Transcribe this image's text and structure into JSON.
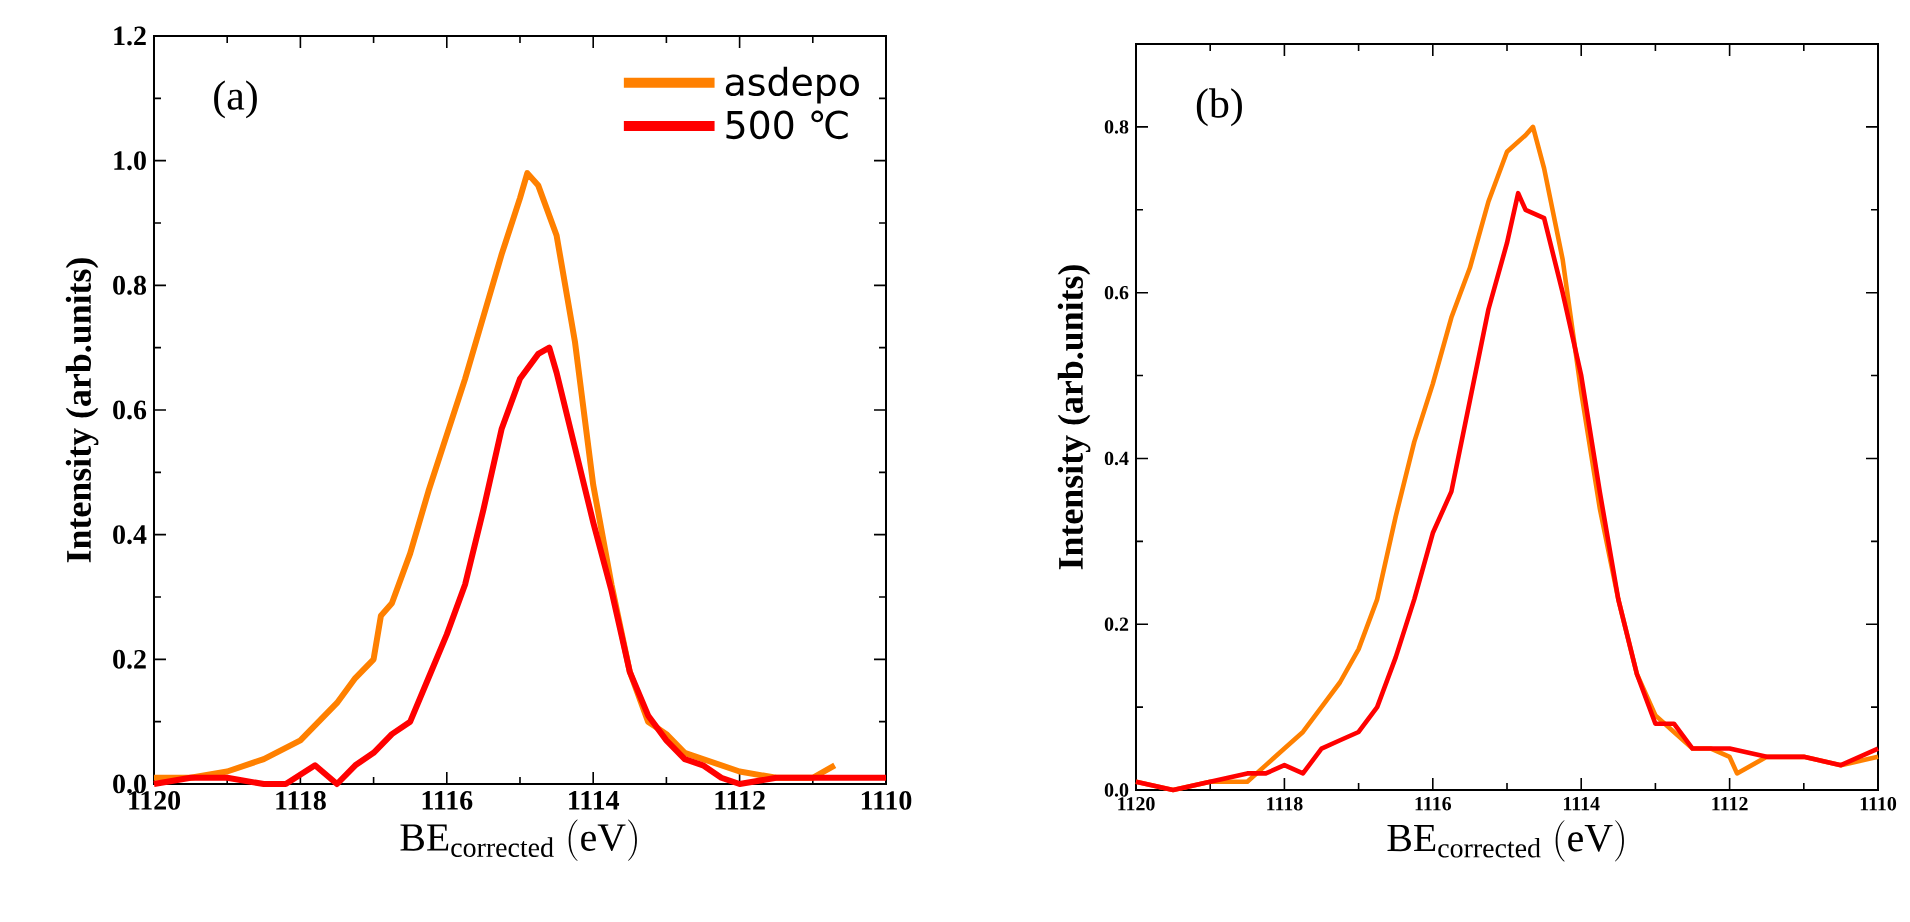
{
  "chart_data": [
    {
      "type": "line",
      "xlabel": "\\mathrm{BE}_{\\mathrm{corrected}}\\ \\mathrm{(eV)}",
      "ylabel": "Intensity (arb.units)",
      "annotations": [
        "(a)"
      ],
      "legend": "top right",
      "tick_labels": true,
      "xlim": [
        1120,
        1110
      ],
      "xticks": [
        1120,
        {
          "value": 1119,
          "label": null
        },
        1118,
        {
          "value": 1117,
          "label": null
        },
        1116,
        {
          "value": 1115,
          "label": null
        },
        1114,
        {
          "value": 1113,
          "label": null
        },
        1112,
        {
          "value": 1111,
          "label": null
        },
        1110
      ],
      "ylim": [
        0,
        1.2
      ],
      "yticks": [
        {
          "value": 0,
          "label": "0.0"
        },
        {
          "value": 0.1,
          "label": null
        },
        0.2,
        {
          "value": 0.3,
          "label": null
        },
        0.4,
        {
          "value": 0.5,
          "label": null
        },
        0.6,
        {
          "value": 0.7,
          "label": null
        },
        0.8,
        {
          "value": 0.9,
          "label": null
        },
        {
          "value": 1,
          "label": "1.0"
        },
        {
          "value": 1.1,
          "label": null
        },
        1.2
      ],
      "series": [
        {
          "name": "asdepo",
          "color": "#ff8000",
          "x": [
            1120,
            1119.5,
            1119,
            1118.5,
            1118,
            1117.75,
            1117.5,
            1117.25,
            1117,
            1116.9,
            1116.75,
            1116.5,
            1116.25,
            1116,
            1115.75,
            1115.5,
            1115.25,
            1115,
            1114.9,
            1114.75,
            1114.5,
            1114.25,
            1114,
            1113.75,
            1113.5,
            1113.25,
            1113,
            1112.75,
            1112.5,
            1112,
            1111.5,
            1111,
            1110.7
          ],
          "values": [
            0.01,
            0.01,
            0.02,
            0.04,
            0.07,
            0.1,
            0.13,
            0.17,
            0.2,
            0.27,
            0.29,
            0.37,
            0.47,
            0.56,
            0.65,
            0.75,
            0.85,
            0.94,
            0.98,
            0.96,
            0.88,
            0.71,
            0.48,
            0.32,
            0.18,
            0.1,
            0.08,
            0.05,
            0.04,
            0.02,
            0.01,
            0.01,
            0.03
          ]
        },
        {
          "name": "500 ℃",
          "color": "#ff0000",
          "x": [
            1120,
            1119.5,
            1119,
            1118.5,
            1118.2,
            1117.8,
            1117.5,
            1117.25,
            1117,
            1116.75,
            1116.5,
            1116.25,
            1116,
            1115.75,
            1115.5,
            1115.25,
            1115,
            1114.75,
            1114.6,
            1114.5,
            1114.25,
            1114,
            1113.75,
            1113.5,
            1113.25,
            1113,
            1112.75,
            1112.5,
            1112.25,
            1112,
            1111.5,
            1111,
            1110.5,
            1110
          ],
          "values": [
            0,
            0.01,
            0.01,
            0,
            0,
            0.03,
            0,
            0.03,
            0.05,
            0.08,
            0.1,
            0.17,
            0.24,
            0.32,
            0.44,
            0.57,
            0.65,
            0.69,
            0.7,
            0.66,
            0.54,
            0.42,
            0.31,
            0.18,
            0.11,
            0.07,
            0.04,
            0.03,
            0.01,
            0,
            0.01,
            0.01,
            0.01,
            0.01
          ]
        }
      ]
    },
    {
      "type": "line",
      "xlabel": "\\mathrm{BE}_{\\mathrm{corrected}}\\ \\mathrm{(eV)}",
      "ylabel": "Intensity (arb.units)",
      "annotations": [
        "(b)"
      ],
      "legend": false,
      "xlim": [
        1120,
        1110
      ],
      "xticks": [
        1120,
        {
          "value": 1119,
          "label": null
        },
        1118,
        {
          "value": 1117,
          "label": null
        },
        1116,
        {
          "value": 1115,
          "label": null
        },
        1114,
        {
          "value": 1113,
          "label": null
        },
        1112,
        {
          "value": 1111,
          "label": null
        },
        1110
      ],
      "ylim": [
        0,
        0.9
      ],
      "yticks": [
        {
          "value": 0,
          "label": "0.0"
        },
        {
          "value": 0.1,
          "label": null
        },
        0.2,
        {
          "value": 0.3,
          "label": null
        },
        0.4,
        {
          "value": 0.5,
          "label": null
        },
        0.6,
        {
          "value": 0.7,
          "label": null
        },
        0.8
      ],
      "series": [
        {
          "color": "#ff8000",
          "x": [
            1120,
            1119.5,
            1119,
            1118.5,
            1118.25,
            1118,
            1117.75,
            1117.5,
            1117.25,
            1117,
            1116.75,
            1116.5,
            1116.25,
            1116,
            1115.75,
            1115.5,
            1115.25,
            1115,
            1114.75,
            1114.65,
            1114.5,
            1114.25,
            1114,
            1113.75,
            1113.5,
            1113.25,
            1113,
            1112.75,
            1112.5,
            1112.25,
            1112,
            1111.9,
            1111.5,
            1111,
            1110.5,
            1110
          ],
          "values": [
            0.01,
            0,
            0.01,
            0.01,
            0.03,
            0.05,
            0.07,
            0.1,
            0.13,
            0.17,
            0.23,
            0.33,
            0.42,
            0.49,
            0.57,
            0.63,
            0.71,
            0.77,
            0.79,
            0.8,
            0.75,
            0.64,
            0.48,
            0.34,
            0.23,
            0.14,
            0.09,
            0.07,
            0.05,
            0.05,
            0.04,
            0.02,
            0.04,
            0.04,
            0.03,
            0.04
          ]
        },
        {
          "color": "#ff0000",
          "x": [
            1120,
            1119.5,
            1119,
            1118.5,
            1118.25,
            1118,
            1117.75,
            1117.5,
            1117.25,
            1117,
            1116.75,
            1116.5,
            1116.25,
            1116,
            1115.75,
            1115.5,
            1115.25,
            1115,
            1114.85,
            1114.75,
            1114.5,
            1114.25,
            1114,
            1113.75,
            1113.5,
            1113.25,
            1113,
            1112.75,
            1112.5,
            1112.25,
            1112,
            1111.5,
            1111,
            1110.5,
            1110
          ],
          "values": [
            0.01,
            0,
            0.01,
            0.02,
            0.02,
            0.03,
            0.02,
            0.05,
            0.06,
            0.07,
            0.1,
            0.16,
            0.23,
            0.31,
            0.36,
            0.47,
            0.58,
            0.66,
            0.72,
            0.7,
            0.69,
            0.6,
            0.5,
            0.36,
            0.23,
            0.14,
            0.08,
            0.08,
            0.05,
            0.05,
            0.05,
            0.04,
            0.04,
            0.03,
            0.05
          ]
        }
      ]
    }
  ]
}
